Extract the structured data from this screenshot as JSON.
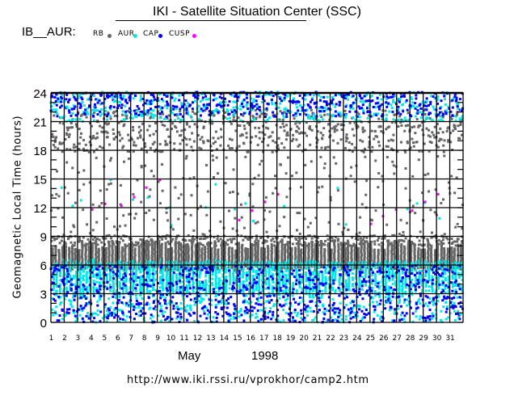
{
  "header": {
    "title": "IKI - Satellite Situation Center (SSC)",
    "instrument": "IB__AUR:"
  },
  "legend": [
    {
      "label": "RB",
      "color": "#666666"
    },
    {
      "label": "AUR",
      "color": "#00e8e8"
    },
    {
      "label": "CAP",
      "color": "#0000ff"
    },
    {
      "label": "CUSP",
      "color": "#ff00ff"
    }
  ],
  "footer": {
    "month": "May",
    "year": "1998",
    "url": "http://www.iki.rssi.ru/vprokhor/camp2.htm"
  },
  "chart_data": {
    "type": "scatter",
    "title": "IKI - Satellite Situation Center (SSC)",
    "xlabel": "May    1998",
    "ylabel": "Geomagnetic Local Time (hours)",
    "xlim": [
      1,
      32
    ],
    "ylim": [
      0,
      24
    ],
    "x_ticks": [
      "1",
      "2",
      "3",
      "4",
      "5",
      "6",
      "7",
      "8",
      "9",
      "10",
      "11",
      "12",
      "13",
      "14",
      "15",
      "16",
      "17",
      "18",
      "19",
      "20",
      "21",
      "22",
      "23",
      "24",
      "25",
      "26",
      "27",
      "28",
      "29",
      "30",
      "31"
    ],
    "y_ticks": [
      "0",
      "3",
      "6",
      "9",
      "12",
      "15",
      "18",
      "21",
      "24"
    ],
    "grid": true,
    "legend_position": "top-left",
    "series": [
      {
        "name": "RB",
        "color": "#666666",
        "bands": [
          {
            "hours": [
              5.5,
              8.6
            ],
            "density": "dense"
          },
          {
            "hours": [
              17.5,
              22.5
            ],
            "density": "medium"
          },
          {
            "hours": [
              9,
              17.5
            ],
            "density": "sparse"
          }
        ]
      },
      {
        "name": "AUR",
        "color": "#00e8e8",
        "bands": [
          {
            "hours": [
              2.5,
              6.5
            ],
            "density": "dense"
          },
          {
            "hours": [
              21,
              24
            ],
            "density": "medium"
          },
          {
            "hours": [
              0,
              2.5
            ],
            "density": "sparse"
          }
        ]
      },
      {
        "name": "CAP",
        "color": "#0000ff",
        "bands": [
          {
            "hours": [
              0,
              6
            ],
            "density": "medium"
          },
          {
            "hours": [
              21.5,
              24
            ],
            "density": "medium"
          }
        ]
      },
      {
        "name": "CUSP",
        "color": "#ff00ff",
        "points": [
          [
            4.1,
            11.8
          ],
          [
            5.07,
            12.4
          ],
          [
            6.3,
            12.2
          ],
          [
            7.26,
            13.1
          ],
          [
            8.17,
            14.1
          ],
          [
            9.2,
            14.9
          ],
          [
            15.16,
            10.7
          ],
          [
            16.14,
            11.7
          ],
          [
            17.1,
            12.6
          ],
          [
            18.08,
            13.4
          ],
          [
            25.07,
            10.3
          ],
          [
            25.98,
            11.1
          ],
          [
            26.96,
            11.8
          ],
          [
            28.17,
            11.7
          ],
          [
            29.15,
            12.6
          ],
          [
            30.12,
            13.4
          ]
        ]
      }
    ]
  }
}
